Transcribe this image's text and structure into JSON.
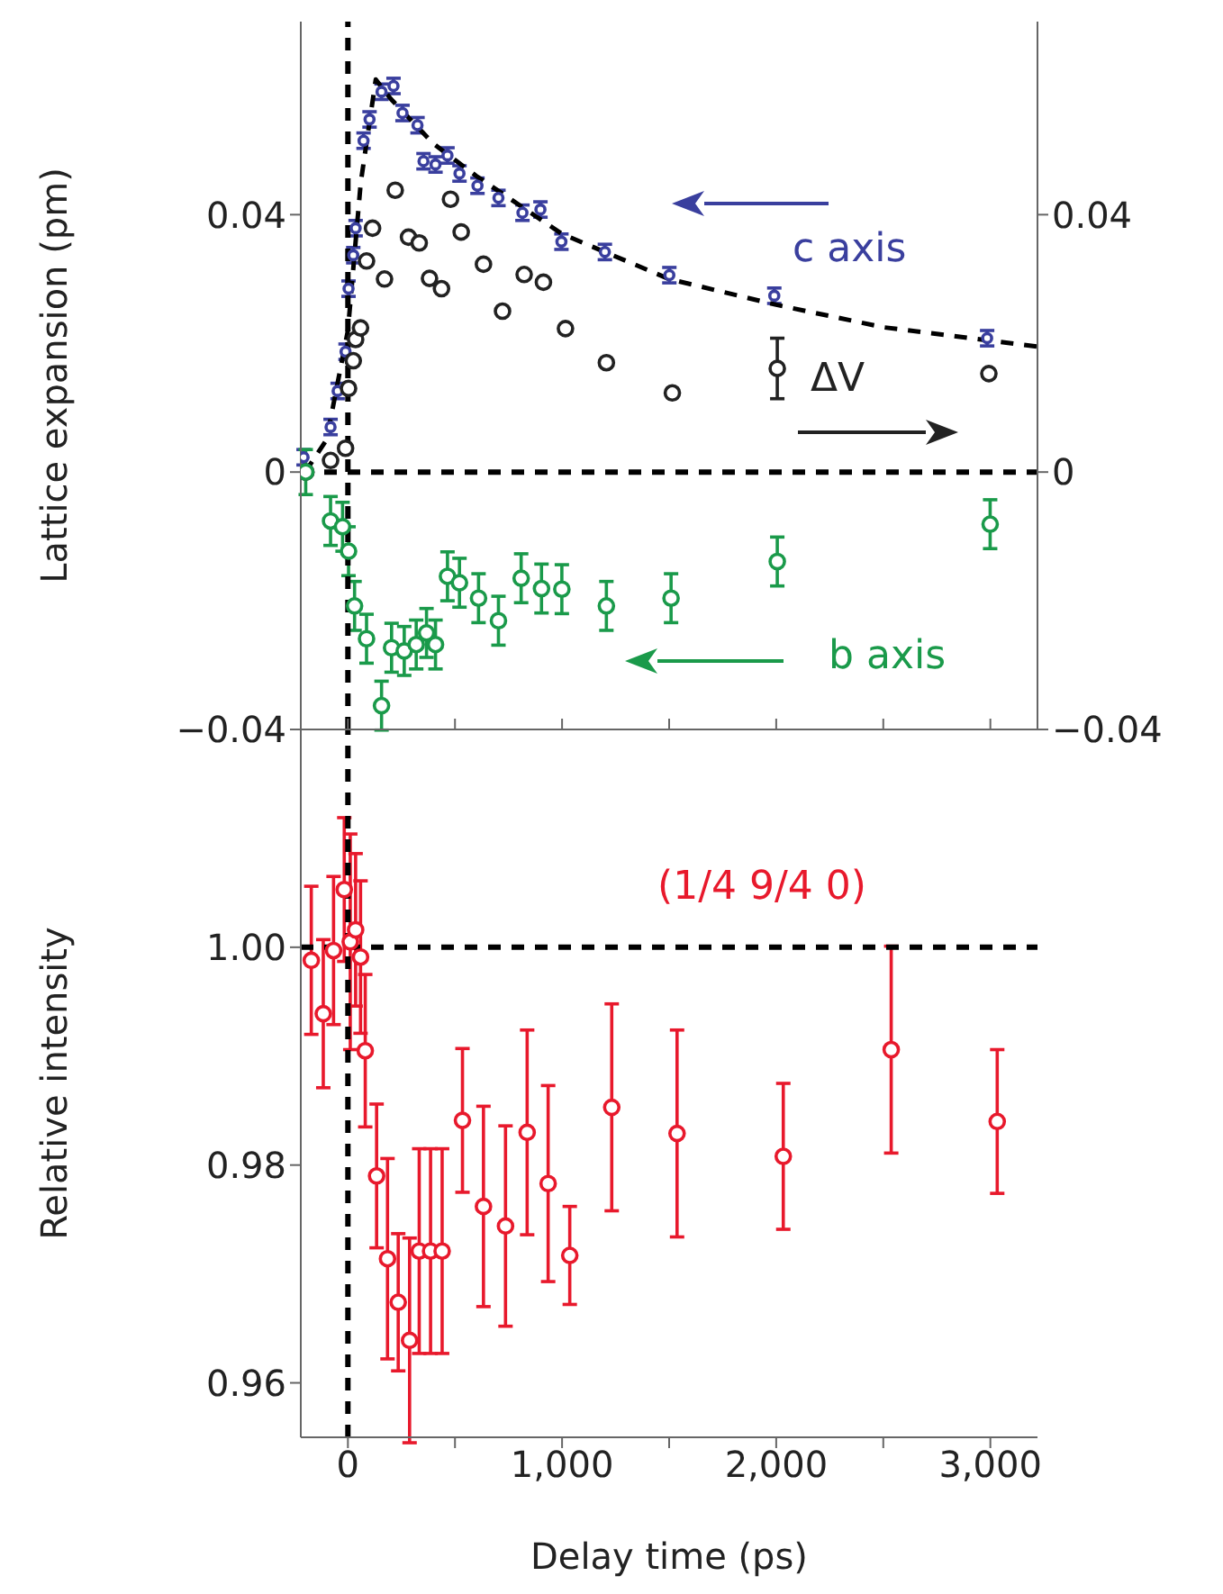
{
  "chart_data": [
    {
      "type": "scatter",
      "ylabel": "Lattice expansion (pm)",
      "xlim": [
        -220,
        3220
      ],
      "xticks": [
        {
          "value": 0,
          "label": null
        },
        {
          "value": 500,
          "label": null
        },
        {
          "value": 1000,
          "label": null
        },
        {
          "value": 1500,
          "label": null
        },
        {
          "value": 2000,
          "label": null
        },
        {
          "value": 2500,
          "label": null
        },
        {
          "value": 3000,
          "label": null
        }
      ],
      "ylim": [
        -0.04,
        0.07
      ],
      "yticks": [
        {
          "value": -0.04,
          "label": "−0.04"
        },
        0,
        0.04
      ],
      "y2lim": [
        -0.04,
        0.07
      ],
      "y2ticks": [
        {
          "value": -0.04,
          "label": "−0.04"
        },
        0,
        0.04
      ],
      "tick_labels": "y",
      "grid": false,
      "marker": "circle",
      "ref_lines": [
        {
          "axis": "y",
          "value": 0,
          "color": "#000000",
          "line_style": "dashed"
        },
        {
          "axis": "x",
          "value": 0,
          "color": "#000000",
          "line_style": "dashed"
        }
      ],
      "series": [
        {
          "name": "c axis",
          "color": "#3a3f9e",
          "x": [
            -207,
            -81,
            -48,
            -11,
            3,
            25,
            36,
            73,
            101,
            157,
            213,
            255,
            325,
            353,
            409,
            465,
            521,
            605,
            703,
            815,
            899,
            997,
            1200,
            1501,
            1991,
            2985
          ],
          "values": [
            0.0023,
            0.007,
            0.0126,
            0.0187,
            0.0285,
            0.0337,
            0.0379,
            0.0515,
            0.0548,
            0.0591,
            0.06,
            0.0558,
            0.0539,
            0.0483,
            0.0478,
            0.0492,
            0.0464,
            0.0445,
            0.0426,
            0.0403,
            0.0408,
            0.0358,
            0.0342,
            0.0306,
            0.0274,
            0.0208
          ],
          "errors": [
            0.0012,
            0.0012,
            0.0012,
            0.0012,
            0.0012,
            0.0012,
            0.0012,
            0.0012,
            0.0012,
            0.0012,
            0.0012,
            0.0012,
            0.0012,
            0.0012,
            0.0012,
            0.0012,
            0.0012,
            0.0012,
            0.0012,
            0.0012,
            0.0012,
            0.0012,
            0.0012,
            0.0012,
            0.0012,
            0.0012
          ]
        },
        {
          "name": "ΔV",
          "axis": "y2",
          "color": "#222222",
          "x": [
            -196,
            -81,
            -11,
            3,
            25,
            36,
            59,
            87,
            115,
            171,
            221,
            283,
            333,
            381,
            437,
            479,
            529,
            633,
            722,
            823,
            913,
            1016,
            1207,
            1515,
            2005,
            2993
          ],
          "values": [
            0.0,
            0.0018,
            0.0037,
            0.013,
            0.0173,
            0.0206,
            0.0224,
            0.0328,
            0.0379,
            0.03,
            0.0438,
            0.0365,
            0.0356,
            0.0301,
            0.0285,
            0.0424,
            0.0373,
            0.0323,
            0.025,
            0.0307,
            0.0295,
            0.0223,
            0.017,
            0.0123,
            0.0161,
            0.0153
          ],
          "errors": [
            null,
            null,
            null,
            null,
            null,
            null,
            null,
            null,
            null,
            null,
            null,
            null,
            null,
            null,
            null,
            null,
            null,
            null,
            null,
            null,
            null,
            null,
            null,
            null,
            0.0047,
            null
          ]
        },
        {
          "name": "b axis",
          "color": "#1a9a4a",
          "x": [
            -197,
            -81,
            -25,
            3,
            31,
            87,
            157,
            204,
            263,
            319,
            367,
            409,
            465,
            521,
            610,
            703,
            809,
            904,
            999,
            1207,
            1509,
            2005,
            2999
          ],
          "values": [
            0.0,
            -0.0076,
            -0.0085,
            -0.0123,
            -0.0208,
            -0.0259,
            -0.0363,
            -0.0273,
            -0.0278,
            -0.0268,
            -0.025,
            -0.0268,
            -0.0162,
            -0.0172,
            -0.0196,
            -0.0231,
            -0.0165,
            -0.0181,
            -0.0182,
            -0.0208,
            -0.0196,
            -0.0139,
            -0.0081
          ],
          "errors": [
            0.0035,
            0.0038,
            0.0038,
            0.0038,
            0.0038,
            0.0038,
            0.0038,
            0.0038,
            0.0038,
            0.0038,
            0.0038,
            0.0038,
            0.0038,
            0.0038,
            0.0038,
            0.0038,
            0.0038,
            0.0038,
            0.0038,
            0.0038,
            0.0038,
            0.0038,
            0.0038
          ]
        },
        {
          "type": "line",
          "color": "#000000",
          "line_style": "dashed",
          "marker": "none",
          "x": [
            -200,
            -100,
            0,
            60,
            130,
            200,
            400,
            600,
            1000,
            1500,
            2000,
            2500,
            3220
          ],
          "values": [
            0.0,
            0.005,
            0.022,
            0.045,
            0.061,
            0.058,
            0.051,
            0.046,
            0.037,
            0.03,
            0.026,
            0.0225,
            0.0195
          ]
        }
      ]
    },
    {
      "type": "scatter",
      "xlabel": "Delay time (ps)",
      "ylabel": "Relative intensity",
      "xlim": [
        -220,
        3220
      ],
      "xticks": [
        0,
        {
          "value": 500,
          "label": null
        },
        {
          "value": 1000,
          "label": "1,000"
        },
        {
          "value": 1500,
          "label": null
        },
        {
          "value": 2000,
          "label": "2,000"
        },
        {
          "value": 2500,
          "label": null
        },
        {
          "value": 3000,
          "label": "3,000"
        }
      ],
      "ylim": [
        0.955,
        1.02
      ],
      "yticks": [
        0.96,
        0.98,
        {
          "value": 1,
          "label": "1.00"
        }
      ],
      "grid": false,
      "marker": "circle",
      "ref_lines": [
        {
          "axis": "y",
          "value": 1,
          "color": "#000000",
          "line_style": "dashed"
        },
        {
          "axis": "x",
          "value": 0,
          "color": "#000000",
          "line_style": "dashed"
        }
      ],
      "series": [
        {
          "name": "(1/4 9/4 0)",
          "color": "#e8192c",
          "x": [
            -171,
            -115,
            -67,
            -17,
            11,
            36,
            59,
            81,
            134,
            185,
            235,
            288,
            333,
            386,
            440,
            535,
            633,
            736,
            837,
            935,
            1036,
            1232,
            1537,
            2033,
            2537,
            3032
          ],
          "values": [
            0.9988,
            0.9939,
            0.9997,
            1.0053,
            1.0005,
            1.0016,
            0.9991,
            0.9905,
            0.979,
            0.9714,
            0.9674,
            0.9639,
            0.9721,
            0.9721,
            0.9721,
            0.9841,
            0.9762,
            0.9744,
            0.983,
            0.9783,
            0.9717,
            0.9853,
            0.9829,
            0.9808,
            0.9906,
            0.984
          ],
          "errors": [
            0.0068,
            0.0068,
            0.0068,
            0.0066,
            0.0099,
            0.007,
            0.007,
            0.007,
            0.0066,
            0.0092,
            0.0063,
            0.0094,
            0.0094,
            0.0094,
            0.0094,
            0.0066,
            0.0092,
            0.0092,
            0.0094,
            0.009,
            0.0045,
            0.0095,
            0.0095,
            0.0067,
            0.0095,
            0.0066
          ]
        }
      ]
    }
  ]
}
